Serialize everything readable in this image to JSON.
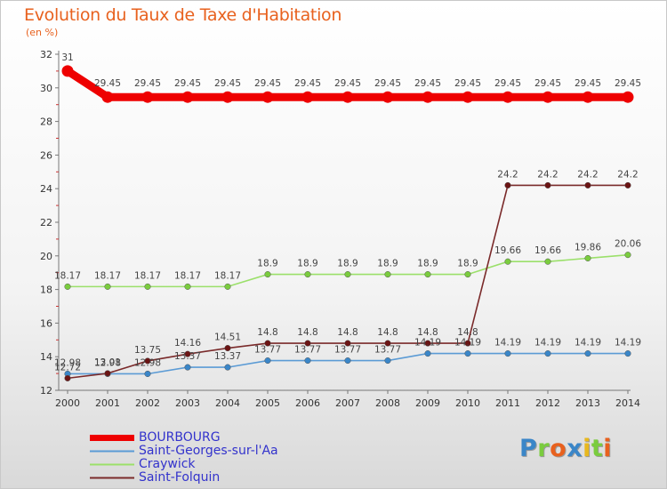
{
  "title": "Evolution du Taux de Taxe d'Habitation",
  "unit": "(en %)",
  "brand": "Proxiti",
  "colors": {
    "title": "#e8611e",
    "legend_text": "#3333cc"
  },
  "chart_data": {
    "type": "line",
    "title": "Evolution du Taux de Taxe d'Habitation",
    "ylabel": "(en %)",
    "xlabel": "",
    "x": [
      "2000",
      "2001",
      "2002",
      "2003",
      "2004",
      "2005",
      "2006",
      "2007",
      "2008",
      "2009",
      "2010",
      "2011",
      "2012",
      "2013",
      "2014"
    ],
    "ylim": [
      12,
      32
    ],
    "yticks": [
      12,
      14,
      16,
      18,
      20,
      22,
      24,
      26,
      28,
      30,
      32
    ],
    "grid": false,
    "legend_position": "bottom-left",
    "series": [
      {
        "name": "BOURBOURG",
        "color": "#ee0000",
        "thick": true,
        "values": [
          31,
          29.45,
          29.45,
          29.45,
          29.45,
          29.45,
          29.45,
          29.45,
          29.45,
          29.45,
          29.45,
          29.45,
          29.45,
          29.45,
          29.45
        ],
        "labels": [
          "31",
          "29.45",
          "29.45",
          "29.45",
          "29.45",
          "29.45",
          "29.45",
          "29.45",
          "29.45",
          "29.45",
          "29.45",
          "29.45",
          "29.45",
          "29.45",
          "29.45"
        ]
      },
      {
        "name": "Saint-Georges-sur-l'Aa",
        "color": "#5b9bd5",
        "marker": "#3a86c8",
        "values": [
          12.98,
          12.98,
          12.98,
          13.37,
          13.37,
          13.77,
          13.77,
          13.77,
          13.77,
          14.19,
          14.19,
          14.19,
          14.19,
          14.19,
          14.19
        ],
        "labels": [
          "12.98",
          "12.98",
          "12.98",
          "13.37",
          "13.37",
          "13.77",
          "13.77",
          "13.77",
          "13.77",
          "14.19",
          "14.19",
          "14.19",
          "14.19",
          "14.19",
          "14.19"
        ]
      },
      {
        "name": "Craywick",
        "color": "#9be06a",
        "marker": "#7acc3e",
        "values": [
          18.17,
          18.17,
          18.17,
          18.17,
          18.17,
          18.9,
          18.9,
          18.9,
          18.9,
          18.9,
          18.9,
          19.66,
          19.66,
          19.86,
          20.06
        ],
        "labels": [
          "18.17",
          "18.17",
          "18.17",
          "18.17",
          "18.17",
          "18.9",
          "18.9",
          "18.9",
          "18.9",
          "18.9",
          "18.9",
          "19.66",
          "19.66",
          "19.86",
          "20.06"
        ]
      },
      {
        "name": "Saint-Folquin",
        "color": "#7a2a2a",
        "marker": "#6b1414",
        "values": [
          12.72,
          13.01,
          13.75,
          14.16,
          14.51,
          14.8,
          14.8,
          14.8,
          14.8,
          14.8,
          14.8,
          24.2,
          24.2,
          24.2,
          24.2
        ],
        "labels": [
          "12.72",
          "13.01",
          "13.75",
          "14.16",
          "14.51",
          "14.8",
          "14.8",
          "14.8",
          "14.8",
          "14.8",
          "14.8",
          "24.2",
          "24.2",
          "24.2",
          "24.2"
        ]
      }
    ]
  }
}
